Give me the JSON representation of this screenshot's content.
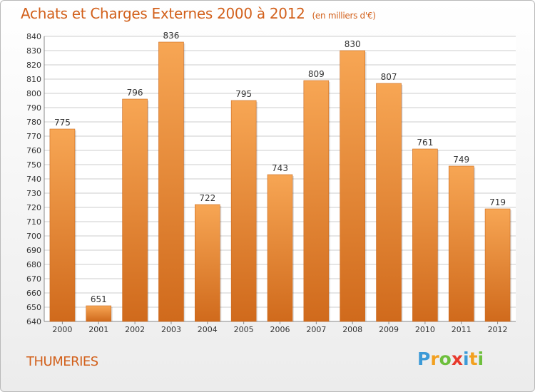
{
  "header": {
    "title": "Achats et Charges Externes 2000 à 2012",
    "subtitle": "(en milliers d'€)"
  },
  "footer": {
    "location": "THUMERIES",
    "brand": [
      {
        "ch": "P",
        "color": "#3c9ad7"
      },
      {
        "ch": "r",
        "color": "#f2a020"
      },
      {
        "ch": "o",
        "color": "#6dbf3c"
      },
      {
        "ch": "x",
        "color": "#e8392c"
      },
      {
        "ch": "i",
        "color": "#3c9ad7"
      },
      {
        "ch": "t",
        "color": "#f2a020"
      },
      {
        "ch": "i",
        "color": "#6dbf3c"
      }
    ]
  },
  "colors": {
    "accent": "#d2601b",
    "bar_light": "#f7a654",
    "bar_dark": "#d06a1c",
    "grid": "#cccccc",
    "axis_text": "#333333"
  },
  "chart_data": {
    "type": "bar",
    "categories": [
      "2000",
      "2001",
      "2002",
      "2003",
      "2004",
      "2005",
      "2006",
      "2007",
      "2008",
      "2009",
      "2010",
      "2011",
      "2012"
    ],
    "values": [
      775,
      651,
      796,
      836,
      722,
      795,
      743,
      809,
      830,
      807,
      761,
      749,
      719
    ],
    "ylim": [
      640,
      840
    ],
    "ytick_step": 10,
    "grid": true
  }
}
